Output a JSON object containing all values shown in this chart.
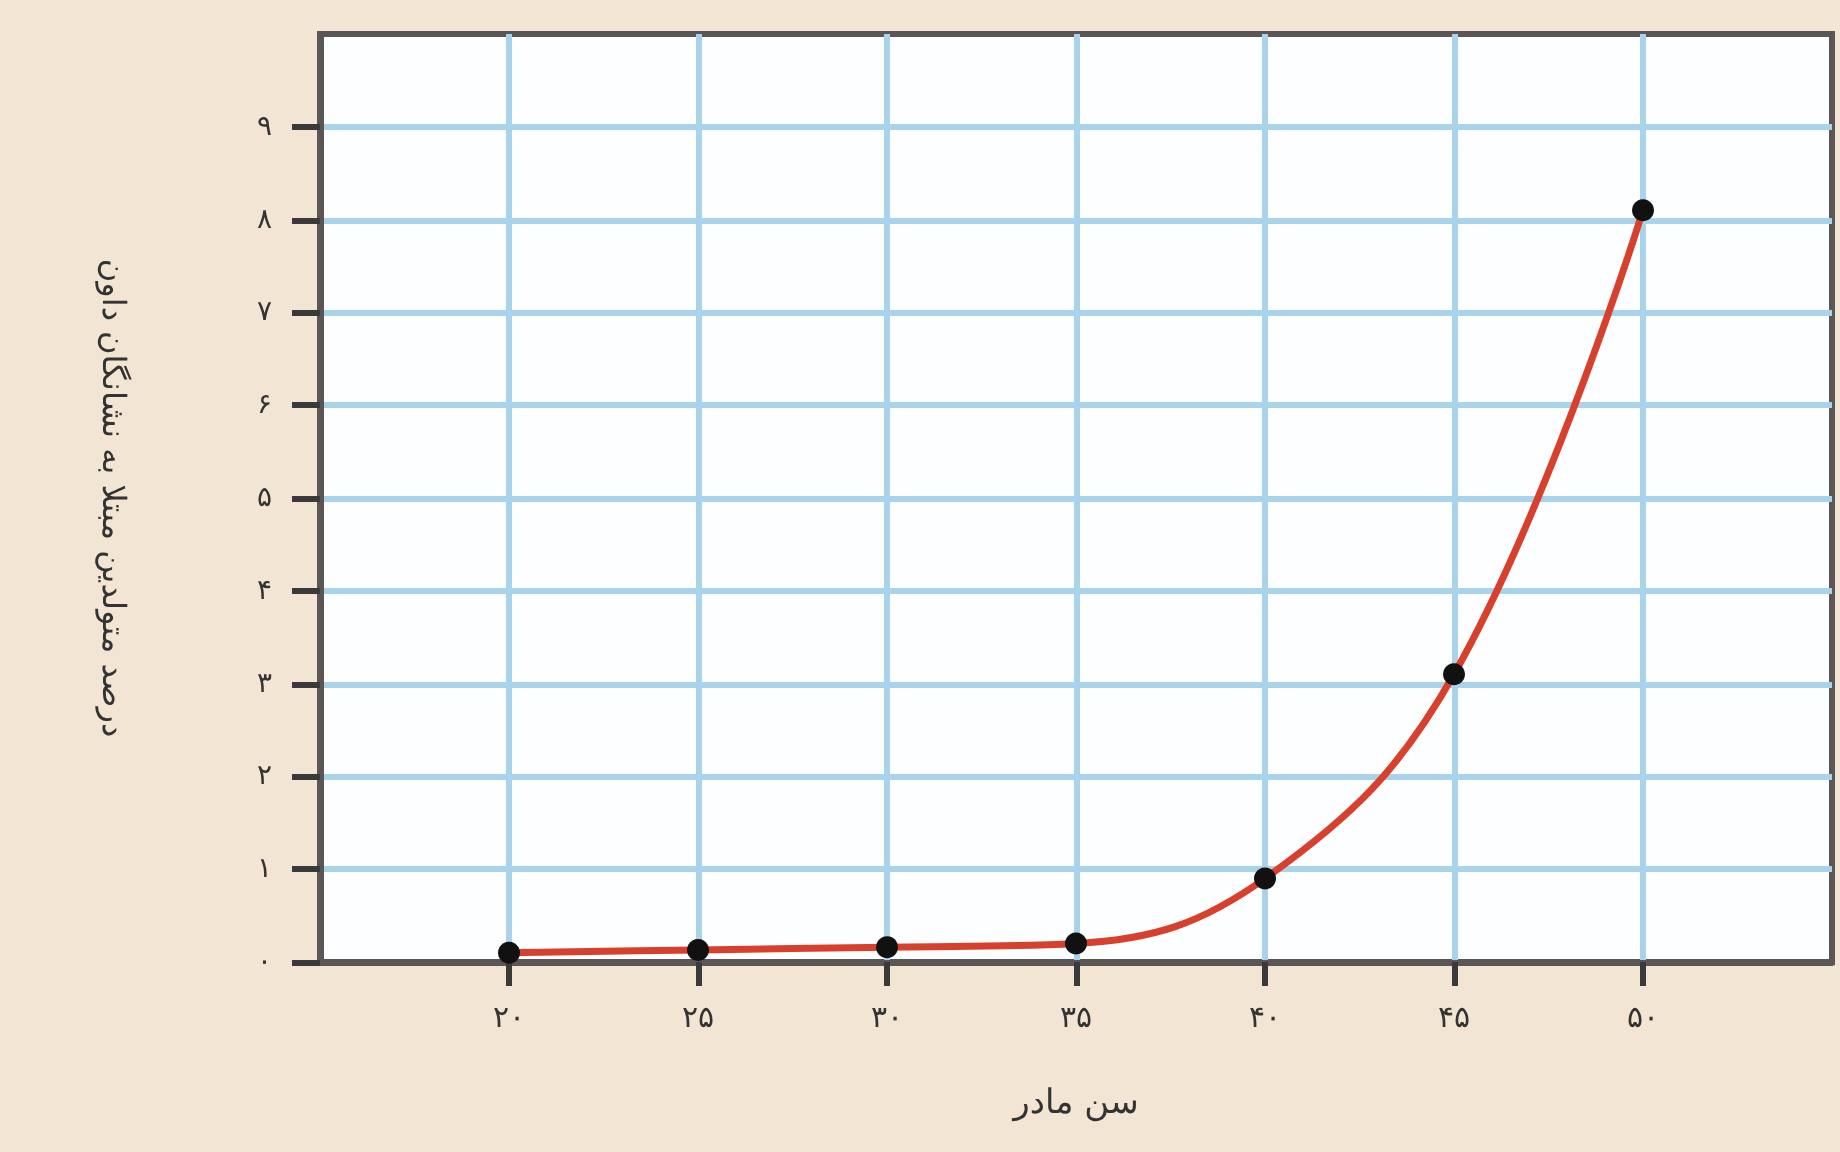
{
  "chart_data": {
    "type": "line",
    "xlabel": "سن مادر",
    "ylabel": "درصد متولدین مبتلا به نشانگان داون",
    "x": [
      20,
      25,
      30,
      35,
      40,
      45,
      50
    ],
    "series": [
      {
        "color": "#d8402e",
        "values": [
          0.1,
          0.13,
          0.16,
          0.2,
          0.9,
          3.1,
          8.1
        ]
      }
    ],
    "xlim": [
      15,
      55
    ],
    "xticks": [
      {
        "value": 20,
        "label": "۲۰"
      },
      {
        "value": 25,
        "label": "۲۵"
      },
      {
        "value": 30,
        "label": "۳۰"
      },
      {
        "value": 35,
        "label": "۳۵"
      },
      {
        "value": 40,
        "label": "۴۰"
      },
      {
        "value": 45,
        "label": "۴۵"
      },
      {
        "value": 50,
        "label": "۵۰"
      }
    ],
    "ylim": [
      0,
      10
    ],
    "yticks": [
      {
        "value": 0,
        "label": "۰"
      },
      {
        "value": 1,
        "label": "۱"
      },
      {
        "value": 2,
        "label": "۲"
      },
      {
        "value": 3,
        "label": "۳"
      },
      {
        "value": 4,
        "label": "۴"
      },
      {
        "value": 5,
        "label": "۵"
      },
      {
        "value": 6,
        "label": "۶"
      },
      {
        "value": 7,
        "label": "۷"
      },
      {
        "value": 8,
        "label": "۸"
      },
      {
        "value": 9,
        "label": "۹"
      }
    ],
    "grid": true,
    "marker": "circle",
    "line_style": "solid"
  }
}
